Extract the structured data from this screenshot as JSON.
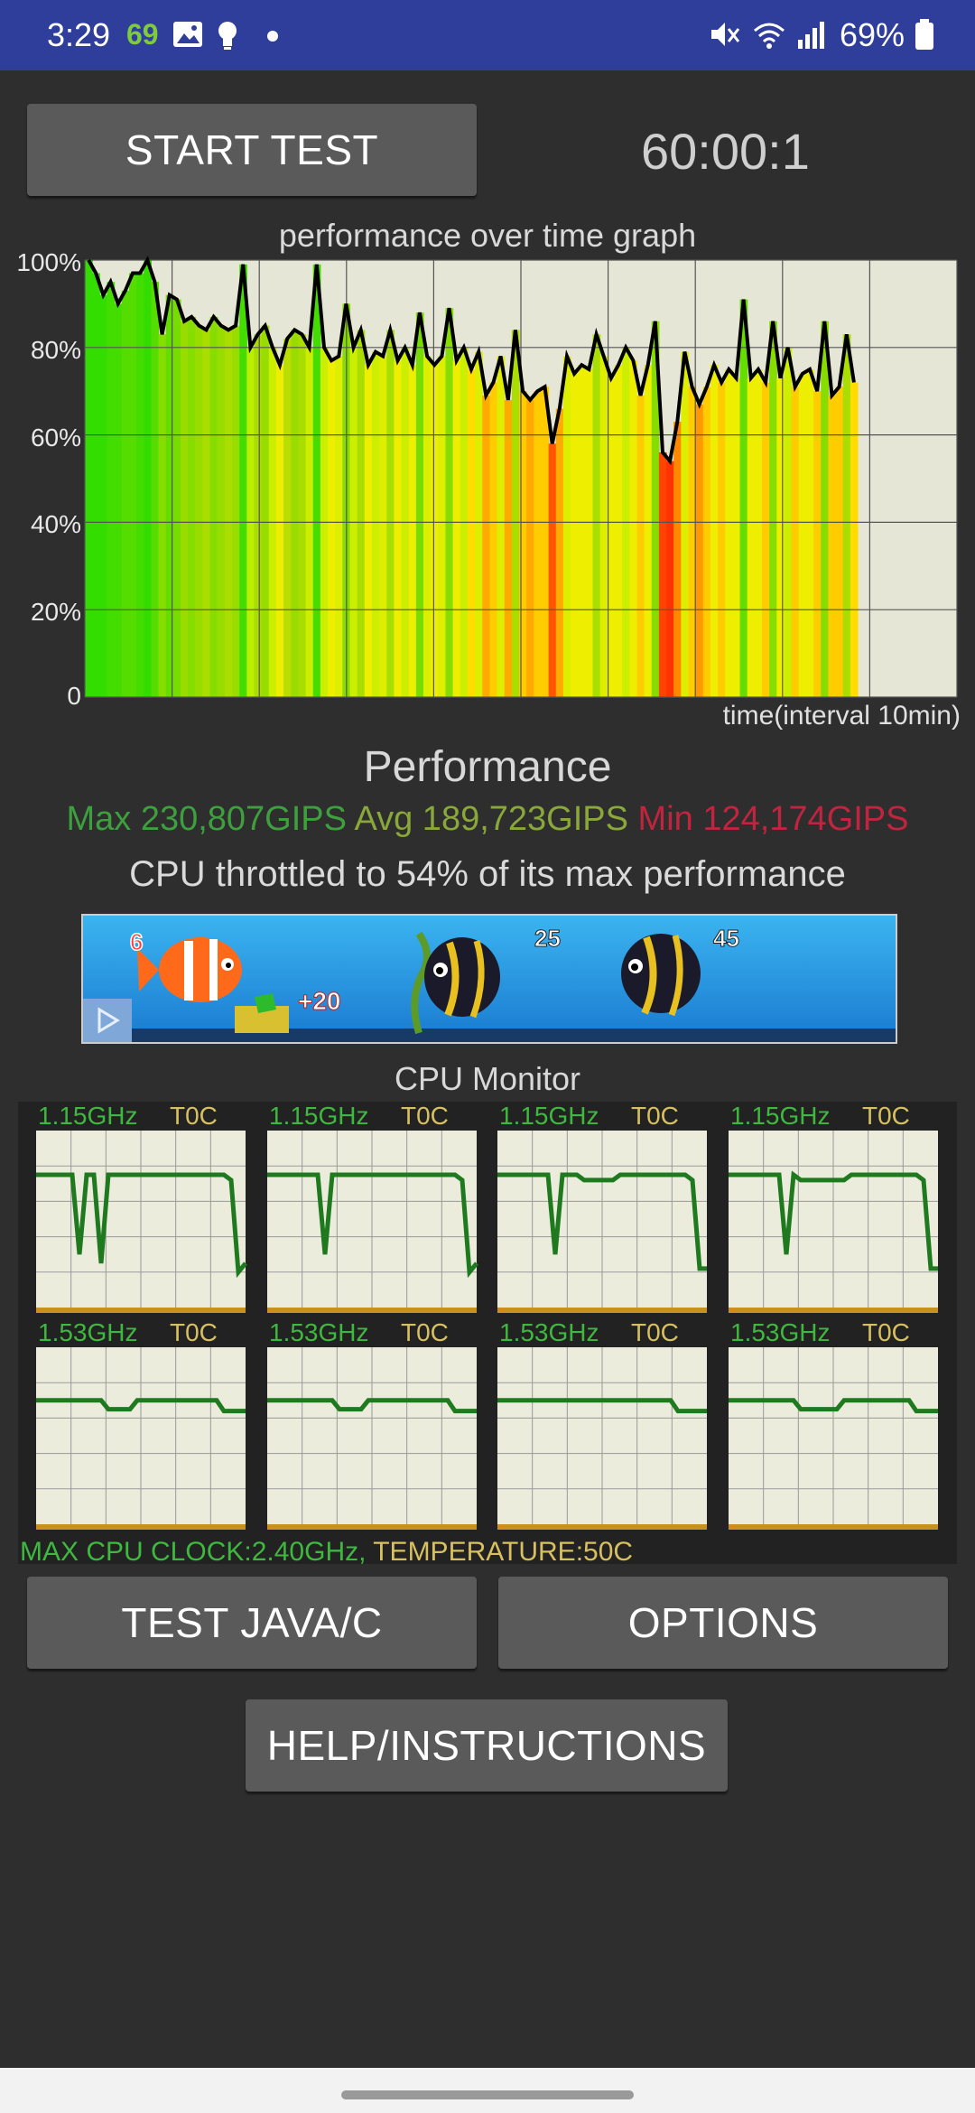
{
  "status_bar": {
    "time": "3:29",
    "notification_count": "69",
    "battery_percent": "69%"
  },
  "buttons": {
    "start_test": "START TEST",
    "test_java_c": "TEST JAVA/C",
    "options": "OPTIONS",
    "help": "HELP/INSTRUCTIONS"
  },
  "timer": "60:00:1",
  "graph": {
    "title": "performance over time graph",
    "y_ticks": [
      "100%",
      "80%",
      "60%",
      "40%",
      "20%",
      "0"
    ],
    "x_caption": "time(interval 10min)"
  },
  "chart_data": {
    "type": "area",
    "ylim": [
      0,
      100
    ],
    "performance_percent": [
      100,
      97,
      92,
      95,
      90,
      93,
      97,
      97,
      100,
      95,
      83,
      92,
      91,
      86,
      87,
      85,
      84,
      87,
      85,
      84,
      85,
      99,
      80,
      83,
      85,
      80,
      76,
      82,
      84,
      83,
      80,
      99,
      80,
      77,
      78,
      90,
      80,
      84,
      76,
      79,
      78,
      84,
      77,
      80,
      76,
      88,
      78,
      76,
      78,
      89,
      77,
      80,
      75,
      79,
      69,
      72,
      78,
      68,
      84,
      70,
      68,
      70,
      71,
      58,
      66,
      78,
      74,
      76,
      75,
      83,
      78,
      73,
      76,
      80,
      77,
      69,
      76,
      86,
      56,
      54,
      63,
      79,
      71,
      67,
      71,
      76,
      72,
      75,
      73,
      91,
      73,
      75,
      72,
      86,
      73,
      80,
      71,
      74,
      75,
      70,
      86,
      69,
      71,
      83,
      72
    ],
    "heat_colors": [
      "#33dd00",
      "#33dd00",
      "#33dd00",
      "#44dd00",
      "#44dd00",
      "#55dd00",
      "#55dd00",
      "#44dd00",
      "#33dd00",
      "#55dd00",
      "#88dd00",
      "#66dd00",
      "#77dd00",
      "#99dd00",
      "#88dd00",
      "#99dd00",
      "#aadd00",
      "#88dd00",
      "#99dd00",
      "#aadd00",
      "#99dd00",
      "#44dd00",
      "#bbee00",
      "#aadd00",
      "#99dd00",
      "#ccee00",
      "#eeee00",
      "#bbdd00",
      "#99dd00",
      "#aadd00",
      "#ccee00",
      "#44dd00",
      "#ccee00",
      "#eeee00",
      "#ddee00",
      "#88dd00",
      "#ccee00",
      "#aadd00",
      "#eeee00",
      "#ccee00",
      "#ddee00",
      "#aadd00",
      "#eeee00",
      "#ccee00",
      "#eeee00",
      "#77dd00",
      "#ddee00",
      "#eeee00",
      "#ddee00",
      "#88dd00",
      "#eeee00",
      "#ccee00",
      "#ffdd00",
      "#ddee00",
      "#ffaa00",
      "#ffcc00",
      "#ddee00",
      "#ffaa00",
      "#aadd00",
      "#ffcc00",
      "#ffaa00",
      "#ffcc00",
      "#ffcc00",
      "#ff5500",
      "#ffaa00",
      "#ddee00",
      "#eeee00",
      "#eeee00",
      "#eeee00",
      "#aadd00",
      "#ddee00",
      "#eeee00",
      "#eeee00",
      "#ccee00",
      "#eeee00",
      "#ffcc00",
      "#eeee00",
      "#88dd00",
      "#ff4400",
      "#ff3300",
      "#ff8800",
      "#ddee00",
      "#ffcc00",
      "#ff9900",
      "#ffcc00",
      "#eeee00",
      "#ffcc00",
      "#eeee00",
      "#eeee00",
      "#66dd00",
      "#eeee00",
      "#eeee00",
      "#ffcc00",
      "#88dd00",
      "#eeee00",
      "#ccee00",
      "#ffcc00",
      "#eeee00",
      "#eeee00",
      "#ffcc00",
      "#88dd00",
      "#ffcc00",
      "#ffcc00",
      "#aadd00",
      "#ffdd00"
    ]
  },
  "performance": {
    "title": "Performance",
    "max": "Max 230,807GIPS",
    "avg": "Avg 189,723GIPS",
    "min": "Min 124,174GIPS",
    "throttle_text": "CPU throttled to 54% of its max performance"
  },
  "ad": {
    "count_a": "6",
    "count_b": "+20",
    "count_c": "25",
    "count_d": "45"
  },
  "cpu_monitor": {
    "title": "CPU Monitor",
    "cores": [
      {
        "clock": "1.15GHz",
        "temp": "T0C",
        "trace": [
          0.75,
          0.75,
          0.75,
          0.75,
          0.75,
          0.75,
          0.3,
          0.75,
          0.75,
          0.25,
          0.75,
          0.75,
          0.75,
          0.75,
          0.75,
          0.75,
          0.75,
          0.75,
          0.75,
          0.75,
          0.75,
          0.75,
          0.75,
          0.75,
          0.75,
          0.75,
          0.75,
          0.72,
          0.2,
          0.25
        ]
      },
      {
        "clock": "1.15GHz",
        "temp": "T0C",
        "trace": [
          0.75,
          0.75,
          0.75,
          0.75,
          0.75,
          0.75,
          0.75,
          0.75,
          0.3,
          0.75,
          0.75,
          0.75,
          0.75,
          0.75,
          0.75,
          0.75,
          0.75,
          0.75,
          0.75,
          0.75,
          0.75,
          0.75,
          0.75,
          0.75,
          0.75,
          0.75,
          0.75,
          0.72,
          0.2,
          0.25
        ]
      },
      {
        "clock": "1.15GHz",
        "temp": "T0C",
        "trace": [
          0.75,
          0.75,
          0.75,
          0.75,
          0.75,
          0.75,
          0.75,
          0.75,
          0.3,
          0.75,
          0.75,
          0.75,
          0.72,
          0.72,
          0.72,
          0.72,
          0.72,
          0.75,
          0.75,
          0.75,
          0.75,
          0.75,
          0.75,
          0.75,
          0.75,
          0.75,
          0.75,
          0.72,
          0.22,
          0.22
        ]
      },
      {
        "clock": "1.15GHz",
        "temp": "T0C",
        "trace": [
          0.75,
          0.75,
          0.75,
          0.75,
          0.75,
          0.75,
          0.75,
          0.75,
          0.3,
          0.75,
          0.72,
          0.72,
          0.72,
          0.72,
          0.72,
          0.72,
          0.72,
          0.75,
          0.75,
          0.75,
          0.75,
          0.75,
          0.75,
          0.75,
          0.75,
          0.75,
          0.75,
          0.72,
          0.22,
          0.22
        ]
      },
      {
        "clock": "1.53GHz",
        "temp": "T0C",
        "trace": [
          0.7,
          0.7,
          0.7,
          0.7,
          0.7,
          0.7,
          0.7,
          0.7,
          0.7,
          0.7,
          0.65,
          0.65,
          0.65,
          0.65,
          0.7,
          0.7,
          0.7,
          0.7,
          0.7,
          0.7,
          0.7,
          0.7,
          0.7,
          0.7,
          0.7,
          0.7,
          0.64,
          0.64,
          0.64,
          0.64
        ]
      },
      {
        "clock": "1.53GHz",
        "temp": "T0C",
        "trace": [
          0.7,
          0.7,
          0.7,
          0.7,
          0.7,
          0.7,
          0.7,
          0.7,
          0.7,
          0.7,
          0.65,
          0.65,
          0.65,
          0.65,
          0.7,
          0.7,
          0.7,
          0.7,
          0.7,
          0.7,
          0.7,
          0.7,
          0.7,
          0.7,
          0.7,
          0.7,
          0.64,
          0.64,
          0.64,
          0.64
        ]
      },
      {
        "clock": "1.53GHz",
        "temp": "T0C",
        "trace": [
          0.7,
          0.7,
          0.7,
          0.7,
          0.7,
          0.7,
          0.7,
          0.7,
          0.7,
          0.7,
          0.7,
          0.7,
          0.7,
          0.7,
          0.7,
          0.7,
          0.7,
          0.7,
          0.7,
          0.7,
          0.7,
          0.7,
          0.7,
          0.7,
          0.7,
          0.64,
          0.64,
          0.64,
          0.64,
          0.64
        ]
      },
      {
        "clock": "1.53GHz",
        "temp": "T0C",
        "trace": [
          0.7,
          0.7,
          0.7,
          0.7,
          0.7,
          0.7,
          0.7,
          0.7,
          0.7,
          0.7,
          0.65,
          0.65,
          0.65,
          0.65,
          0.65,
          0.65,
          0.7,
          0.7,
          0.7,
          0.7,
          0.7,
          0.7,
          0.7,
          0.7,
          0.7,
          0.7,
          0.64,
          0.64,
          0.64,
          0.64
        ]
      }
    ],
    "footer_clock": "MAX CPU CLOCK:2.40GHz,",
    "footer_temp": "TEMPERATURE:50C"
  }
}
